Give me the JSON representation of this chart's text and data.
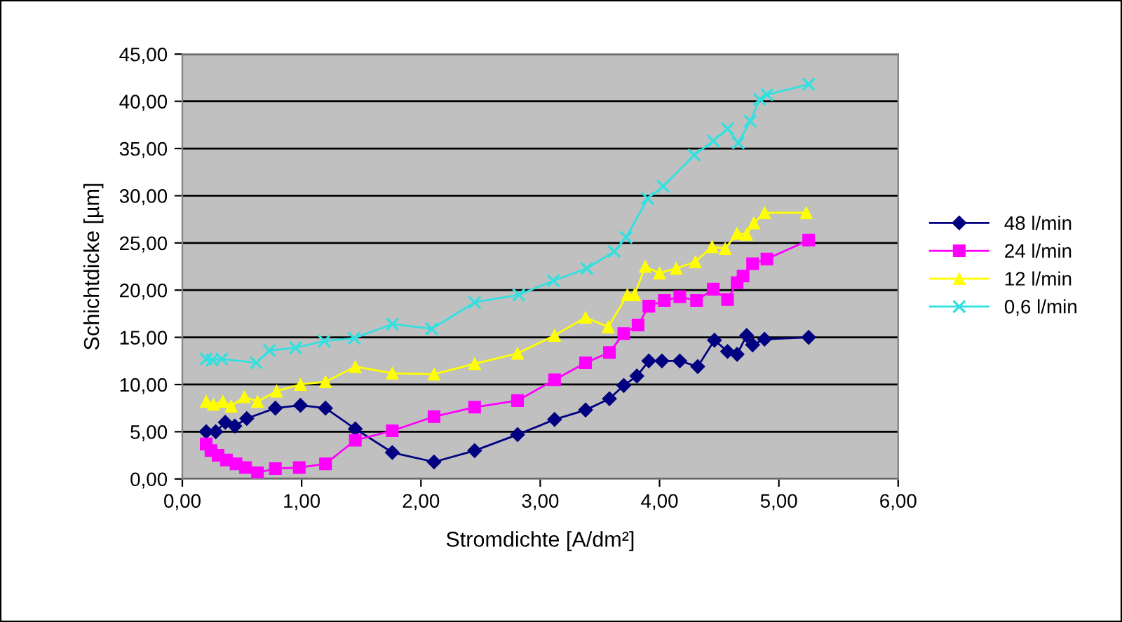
{
  "chart_data": {
    "type": "line",
    "xlabel": "Stromdichte [A/dm²]",
    "ylabel": "Schichtdicke [µm]",
    "xlim": [
      0,
      6
    ],
    "ylim": [
      0,
      45
    ],
    "xticks": [
      {
        "value": 0,
        "label": "0,00"
      },
      {
        "value": 1,
        "label": "1,00"
      },
      {
        "value": 2,
        "label": "2,00"
      },
      {
        "value": 3,
        "label": "3,00"
      },
      {
        "value": 4,
        "label": "4,00"
      },
      {
        "value": 5,
        "label": "5,00"
      },
      {
        "value": 6,
        "label": "6,00"
      }
    ],
    "yticks": [
      {
        "value": 0,
        "label": "0,00"
      },
      {
        "value": 5,
        "label": "5,00"
      },
      {
        "value": 10,
        "label": "10,00"
      },
      {
        "value": 15,
        "label": "15,00"
      },
      {
        "value": 20,
        "label": "20,00"
      },
      {
        "value": 25,
        "label": "25,00"
      },
      {
        "value": 30,
        "label": "30,00"
      },
      {
        "value": 35,
        "label": "35,00"
      },
      {
        "value": 40,
        "label": "40,00"
      },
      {
        "value": 45,
        "label": "45,00"
      }
    ],
    "grid": "y",
    "legend": "right",
    "series": [
      {
        "name": "48 l/min",
        "color": "#000080",
        "marker": "diamond",
        "x": [
          0.2,
          0.28,
          0.36,
          0.44,
          0.54,
          0.78,
          0.99,
          1.2,
          1.45,
          1.76,
          2.11,
          2.45,
          2.81,
          3.12,
          3.38,
          3.58,
          3.7,
          3.81,
          3.91,
          4.02,
          4.17,
          4.32,
          4.46,
          4.57,
          4.65,
          4.73,
          4.78,
          4.88,
          5.25
        ],
        "values": [
          5.0,
          5.0,
          6.0,
          5.6,
          6.4,
          7.5,
          7.8,
          7.5,
          5.3,
          2.8,
          1.8,
          3.0,
          4.7,
          6.3,
          7.3,
          8.5,
          9.9,
          10.9,
          12.5,
          12.5,
          12.5,
          11.9,
          14.7,
          13.5,
          13.2,
          15.2,
          14.2,
          14.8,
          15.0
        ]
      },
      {
        "name": "24 l/min",
        "color": "#ff00ff",
        "marker": "square",
        "x": [
          0.2,
          0.24,
          0.3,
          0.37,
          0.45,
          0.53,
          0.63,
          0.78,
          0.98,
          1.2,
          1.45,
          1.76,
          2.11,
          2.45,
          2.81,
          3.12,
          3.38,
          3.58,
          3.7,
          3.82,
          3.91,
          4.04,
          4.17,
          4.31,
          4.45,
          4.57,
          4.65,
          4.7,
          4.78,
          4.9,
          5.25
        ],
        "values": [
          3.7,
          3.0,
          2.5,
          2.0,
          1.6,
          1.2,
          0.65,
          1.1,
          1.2,
          1.6,
          4.1,
          5.1,
          6.6,
          7.6,
          8.3,
          10.5,
          12.3,
          13.4,
          15.4,
          16.3,
          18.3,
          18.9,
          19.3,
          18.9,
          20.1,
          19.0,
          20.8,
          21.5,
          22.8,
          23.3,
          25.3
        ]
      },
      {
        "name": "12 l/min",
        "color": "#ffff00",
        "marker": "triangle",
        "x": [
          0.2,
          0.26,
          0.34,
          0.41,
          0.52,
          0.63,
          0.79,
          0.99,
          1.2,
          1.45,
          1.76,
          2.11,
          2.45,
          2.81,
          3.12,
          3.38,
          3.57,
          3.73,
          3.79,
          3.88,
          4.0,
          4.14,
          4.3,
          4.44,
          4.55,
          4.65,
          4.73,
          4.79,
          4.88,
          5.23
        ],
        "values": [
          8.2,
          7.9,
          8.2,
          7.7,
          8.7,
          8.2,
          9.3,
          10.0,
          10.3,
          11.9,
          11.2,
          11.1,
          12.2,
          13.3,
          15.2,
          17.1,
          16.1,
          19.5,
          19.5,
          22.5,
          21.8,
          22.3,
          23.0,
          24.6,
          24.4,
          26.0,
          25.9,
          27.1,
          28.2,
          28.2
        ]
      },
      {
        "name": "0,6 l/min",
        "color": "#33e0e0",
        "marker": "cross",
        "x": [
          0.2,
          0.25,
          0.33,
          0.62,
          0.73,
          0.95,
          1.19,
          1.44,
          1.76,
          2.09,
          2.45,
          2.82,
          3.11,
          3.39,
          3.62,
          3.72,
          3.9,
          4.03,
          4.29,
          4.45,
          4.57,
          4.66,
          4.76,
          4.84,
          4.9,
          5.25
        ],
        "values": [
          12.7,
          12.6,
          12.7,
          12.3,
          13.6,
          13.9,
          14.6,
          14.9,
          16.4,
          15.9,
          18.7,
          19.5,
          21.0,
          22.3,
          24.1,
          25.6,
          29.7,
          31.0,
          34.3,
          35.8,
          37.1,
          35.6,
          37.9,
          40.2,
          40.7,
          41.8
        ]
      }
    ]
  }
}
